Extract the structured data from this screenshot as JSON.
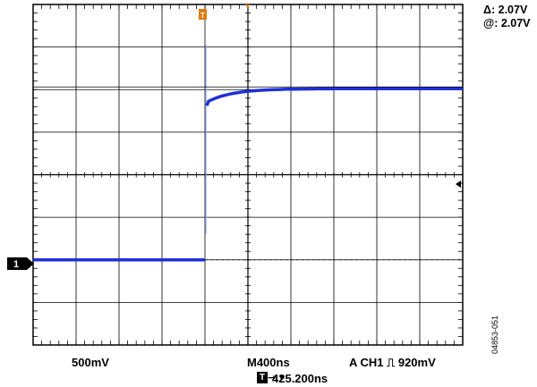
{
  "cursor": {
    "delta": "Δ: 2.07V",
    "at": "@: 2.07V"
  },
  "channel": {
    "marker_label": "1",
    "volts_per_div": "500mV",
    "trace_color": "#1f2fd6"
  },
  "timebase": {
    "time_per_div": "M400ns"
  },
  "trigger": {
    "status": "A  CH1  ⎍  920mV",
    "pos_box": "T",
    "pos_arrow": "→ ▾",
    "position": "425.200ns",
    "marker_color": "#e07a10"
  },
  "figure_id": "04853-051",
  "waveform": {
    "low_level_divisions": 2.0,
    "high_level_divisions": 6.0,
    "step_division": 4.0,
    "divisions_x": 10,
    "divisions_y": 8
  },
  "icons": {
    "channel_marker": "channel-1-ground-marker-icon",
    "trigger_marker": "trigger-position-marker-icon",
    "trigger_level": "trigger-level-arrow-icon"
  }
}
